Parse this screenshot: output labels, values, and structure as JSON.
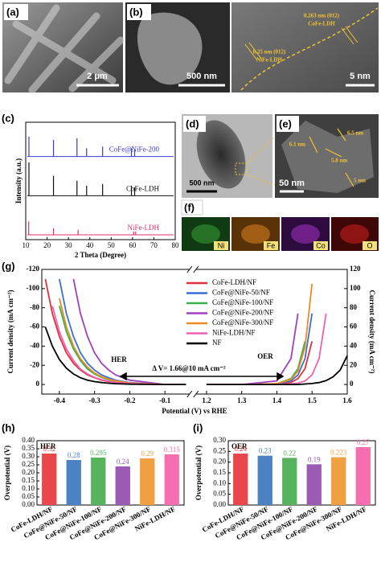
{
  "images": {
    "a": {
      "label": "(a)",
      "scale": "2 μm"
    },
    "b": {
      "label": "(b)",
      "scale": "500 nm",
      "hrtem_scale": "5 nm",
      "annotation1": "0.263 nm (012)",
      "annotation1b": "CoFe-LDH",
      "annotation2": "0.25 nm (012)",
      "annotation2b": "NiFe-LDH"
    },
    "d": {
      "label": "(d)",
      "scale": "500 nm"
    },
    "e": {
      "label": "(e)",
      "scale": "50 nm",
      "measures": [
        "6.1 nm",
        "6.5 nm",
        "5.8 nm",
        "5 nm"
      ]
    },
    "f": {
      "label": "(f)",
      "elements": [
        "Ni",
        "Fe",
        "Co",
        "O"
      ]
    }
  },
  "chart_data": [
    {
      "type": "xrd",
      "panel_label": "(c)",
      "xlabel": "2 Theta (Degree)",
      "ylabel": "Intensity (a.u.)",
      "xlim": [
        10,
        80
      ],
      "xticks": [
        10,
        20,
        30,
        40,
        50,
        60,
        70,
        80
      ],
      "ylim": [
        0,
        100
      ],
      "series": [
        {
          "name": "CoFe@NiFe-200",
          "color": "#3b3bd6",
          "x": [
            11.5,
            23,
            34,
            38.5,
            46,
            59.5,
            61
          ],
          "values": [
            60,
            50,
            55,
            25,
            30,
            25,
            20
          ]
        },
        {
          "name": "CoFe-LDH",
          "color": "#111111",
          "x": [
            11.5,
            23,
            34,
            38.5,
            46,
            59.5,
            61
          ],
          "values": [
            100,
            60,
            45,
            30,
            35,
            30,
            25
          ]
        },
        {
          "name": "NiFe-LDH",
          "color": "#e0306a",
          "x": [
            11.4,
            23,
            34.5,
            60.5,
            61.5
          ],
          "values": [
            40,
            20,
            15,
            10,
            10
          ]
        }
      ]
    },
    {
      "type": "lsv",
      "panel_label": "(g)",
      "xlabel": "Potential (V) vs RHE",
      "ylabel": "Current density (mA cm⁻²)",
      "y2label": "Current density (mA cm⁻²)",
      "xlim": [
        -0.45,
        1.6
      ],
      "xbreak": [
        -0.03,
        1.17
      ],
      "xticks": [
        -0.4,
        -0.3,
        -0.2,
        -0.1,
        1.2,
        1.3,
        1.4,
        1.5,
        1.6
      ],
      "ylim": [
        10,
        -120
      ],
      "yticks": [
        -120,
        -100,
        -80,
        -60,
        -40,
        -20,
        0
      ],
      "y2lim": [
        -10,
        120
      ],
      "y2ticks": [
        0,
        20,
        40,
        60,
        80,
        100,
        120
      ],
      "hline": 10,
      "annotations": [
        "HER",
        "OER",
        "Δ V= 1.66@10 mA cm⁻²"
      ],
      "legend": "upper right",
      "x": [
        -0.44,
        -0.42,
        -0.4,
        -0.38,
        -0.36,
        -0.34,
        -0.32,
        -0.3,
        -0.28,
        -0.26,
        -0.24,
        -0.2,
        -0.1,
        -0.04,
        1.2,
        1.3,
        1.4,
        1.44,
        1.46,
        1.48,
        1.5,
        1.52,
        1.54,
        1.56,
        1.58,
        1.6
      ],
      "series": [
        {
          "name": "CoFe-LDH/NF",
          "color": "#e0303a",
          "values": [
            -110,
            -74,
            -50,
            -33,
            -22,
            -15,
            -10,
            -7,
            -4.5,
            -3,
            -2,
            -0.9,
            0,
            0,
            0,
            0,
            0.3,
            2.2,
            6.1,
            16.5,
            45,
            null,
            null,
            null,
            null,
            null
          ]
        },
        {
          "name": "CoFe@NiFe-50/NF",
          "color": "#3a6fd8",
          "values": [
            null,
            null,
            -110,
            -74,
            -50,
            -33,
            -22,
            -15,
            -10,
            -7,
            -4.5,
            -2,
            0,
            0,
            0,
            0,
            0.5,
            3.7,
            10,
            27,
            74,
            null,
            null,
            null,
            null,
            null
          ]
        },
        {
          "name": "CoFe@NiFe-100/NF",
          "color": "#38b04a",
          "values": [
            null,
            null,
            -82,
            -55,
            -37,
            -25,
            -16,
            -11,
            -7.4,
            -5,
            -3.3,
            -1.5,
            0,
            0,
            0,
            0,
            0.8,
            6.1,
            16.5,
            45,
            null,
            null,
            null,
            null,
            null,
            null
          ]
        },
        {
          "name": "CoFe@NiFe-200/NF",
          "color": "#a040c0",
          "values": [
            null,
            null,
            null,
            null,
            -110,
            -74,
            -50,
            -33,
            -22,
            -15,
            -10,
            -4.5,
            0,
            0,
            0,
            0,
            3.7,
            27,
            74,
            null,
            null,
            null,
            null,
            null,
            null,
            null
          ]
        },
        {
          "name": "CoFe@NiFe-300/NF",
          "color": "#f08a20",
          "values": [
            null,
            null,
            -90,
            -60,
            -40,
            -27,
            -18,
            -12,
            -8,
            -5.5,
            -3.7,
            -1.7,
            0,
            0,
            0,
            0,
            0.7,
            5.2,
            14,
            39,
            105,
            null,
            null,
            null,
            null,
            null
          ]
        },
        {
          "name": "NiFe-LDH/NF",
          "color": "#f060b0",
          "values": [
            null,
            -82,
            -55,
            -37,
            -25,
            -16,
            -11,
            -7.4,
            -5,
            -3.3,
            -2.2,
            -1,
            0,
            0,
            0,
            0,
            0.1,
            0.5,
            1.4,
            3.7,
            10,
            27,
            74,
            null,
            null,
            null
          ]
        },
        {
          "name": "NF",
          "color": "#000000",
          "values": [
            -60,
            -40,
            -26,
            -17,
            -11,
            -7,
            -4.5,
            -3,
            -2,
            -1.3,
            -0.8,
            -0.3,
            0,
            0,
            0,
            0,
            0,
            0,
            0,
            0.5,
            1,
            2,
            4,
            8,
            15,
            30
          ]
        }
      ]
    },
    {
      "type": "bar",
      "panel_label": "(h)",
      "inner_label": "HER",
      "ylabel": "Overpotential (V)",
      "categories": [
        "CoFe-LDH/NF",
        "CoFe@NiFe-50/NF",
        "CoFe@NiFe-100/NF",
        "CoFe@NiFe-200/NF",
        "CoFe@NiFe-300/NF",
        "NiFe-LDH/NF"
      ],
      "values": [
        0.32,
        0.28,
        0.295,
        0.24,
        0.29,
        0.315
      ],
      "colors": [
        "#e8474b",
        "#4b82c4",
        "#56b45c",
        "#9b5bb5",
        "#f0a040",
        "#f56fb0"
      ],
      "ylim": [
        0,
        0.4
      ],
      "yticks": [
        {
          "value": 0,
          "label": "0.00"
        },
        {
          "value": 0.05,
          "label": "0.05"
        },
        {
          "value": 0.1,
          "label": "0.10"
        },
        {
          "value": 0.15,
          "label": "0.15"
        },
        {
          "value": 0.2,
          "label": "0.20"
        },
        {
          "value": 0.25,
          "label": "0.25"
        },
        {
          "value": 0.3,
          "label": "0.30"
        },
        {
          "value": 0.35,
          "label": "0.35"
        },
        {
          "value": 0.4,
          "label": "0.40"
        }
      ]
    },
    {
      "type": "bar",
      "panel_label": "(i)",
      "inner_label": "OER",
      "ylabel": "Overpotential (V)",
      "categories": [
        "CoFe-LDH/NF",
        "CoFe@NiFe-50/NF",
        "CoFe@NiFe-100/NF",
        "CoFe@NiFe-200/NF",
        "CoFe@NiFe-300/NF",
        "NiFe-LDH/NF"
      ],
      "values": [
        0.24,
        0.23,
        0.22,
        0.19,
        0.223,
        0.27
      ],
      "colors": [
        "#e8474b",
        "#4b82c4",
        "#56b45c",
        "#9b5bb5",
        "#f0a040",
        "#f56fb0"
      ],
      "ylim": [
        0,
        0.3
      ],
      "yticks": [
        {
          "value": 0,
          "label": "0.00"
        },
        {
          "value": 0.05,
          "label": "0.05"
        },
        {
          "value": 0.1,
          "label": "0.10"
        },
        {
          "value": 0.15,
          "label": "0.15"
        },
        {
          "value": 0.2,
          "label": "0.20"
        },
        {
          "value": 0.25,
          "label": "0.25"
        },
        {
          "value": 0.3,
          "label": "0.30"
        }
      ]
    }
  ]
}
